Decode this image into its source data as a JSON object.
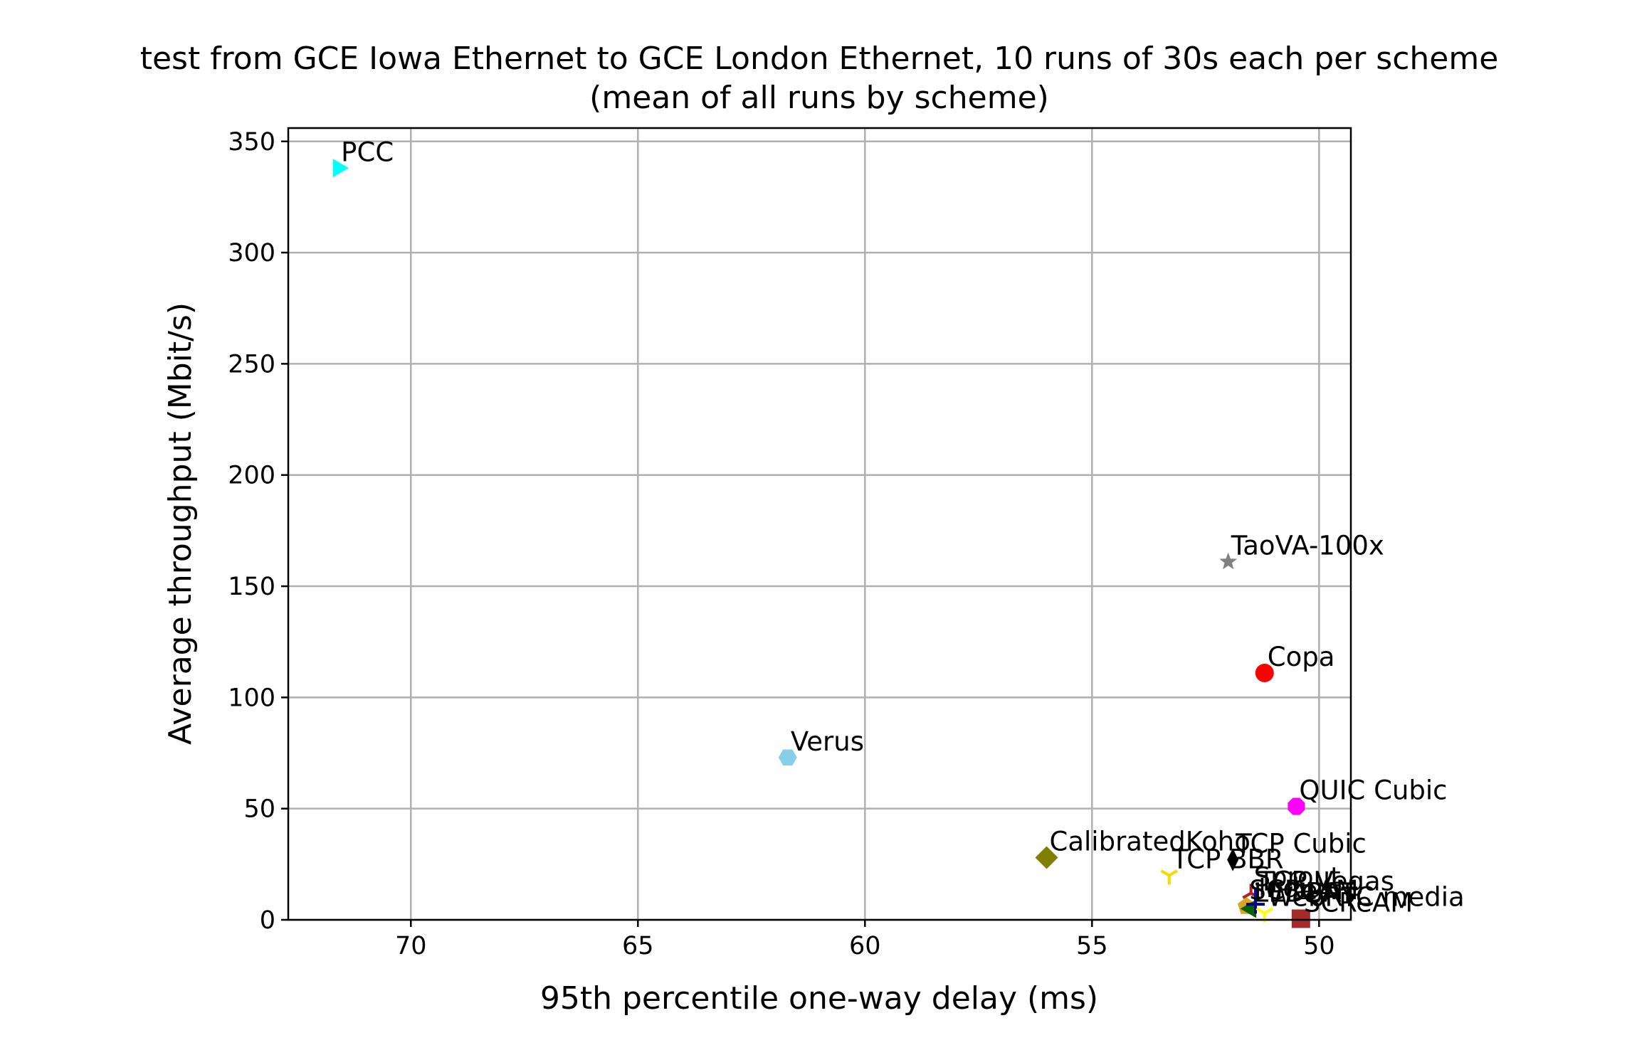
{
  "chart_data": {
    "type": "scatter",
    "title": "test from GCE Iowa Ethernet to GCE London Ethernet, 10 runs of 30s each per scheme",
    "subtitle": "(mean of all runs by scheme)",
    "xlabel": "95th percentile one-way delay (ms)",
    "ylabel": "Average throughput (Mbit/s)",
    "xlim": [
      72.7,
      49.3
    ],
    "ylim": [
      0,
      356
    ],
    "x_inverted": true,
    "grid": true,
    "xticks": [
      70,
      65,
      60,
      55,
      50
    ],
    "yticks": [
      0,
      50,
      100,
      150,
      200,
      250,
      300,
      350
    ],
    "points": [
      {
        "name": "PCC",
        "x": 71.6,
        "y": 338,
        "marker": "triangle-right",
        "color": "#00ffff"
      },
      {
        "name": "TaoVA-100x",
        "x": 52.0,
        "y": 161,
        "marker": "star",
        "color": "#808080"
      },
      {
        "name": "Copa",
        "x": 51.2,
        "y": 111,
        "marker": "circle",
        "color": "#ff0000"
      },
      {
        "name": "Verus",
        "x": 61.7,
        "y": 73,
        "marker": "hexagon",
        "color": "#87ceeb"
      },
      {
        "name": "QUIC Cubic",
        "x": 50.5,
        "y": 51,
        "marker": "octagon",
        "color": "#ff00ff"
      },
      {
        "name": "CalibratedKoho",
        "x": 56.0,
        "y": 28,
        "marker": "diamond",
        "color": "#808000"
      },
      {
        "name": "TCP Cubic",
        "x": 51.9,
        "y": 27,
        "marker": "thin-diamond",
        "color": "#000000"
      },
      {
        "name": "TCP BBR",
        "x": 53.3,
        "y": 20,
        "marker": "tri-down",
        "color": "#ffd700"
      },
      {
        "name": "Sprout",
        "x": 51.5,
        "y": 12,
        "marker": "tri-up",
        "color": "#b22222"
      },
      {
        "name": "TCP Vegas",
        "x": 51.4,
        "y": 10,
        "marker": "vline",
        "color": "#0000cd"
      },
      {
        "name": "SCReAM",
        "x": 51.6,
        "y": 6,
        "marker": "pentagon",
        "color": "#daa520"
      },
      {
        "name": "LEDBAT",
        "x": 51.5,
        "y": 5,
        "marker": "triangle-left",
        "color": "#006400"
      },
      {
        "name": "Indigo",
        "x": 51.4,
        "y": 7,
        "marker": "plus",
        "color": "#00008b"
      },
      {
        "name": "WebRTC media",
        "x": 51.2,
        "y": 3,
        "marker": "tri-down",
        "color": "#ffff00"
      },
      {
        "name": "SCReAM",
        "x": 50.4,
        "y": 0.5,
        "marker": "square",
        "color": "#a52a2a"
      }
    ]
  }
}
